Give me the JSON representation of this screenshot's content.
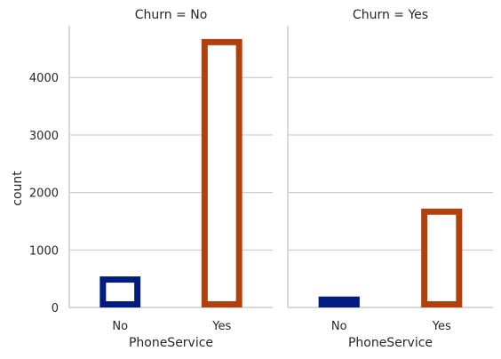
{
  "chart_data": {
    "type": "bar",
    "facets": [
      {
        "title": "Churn = No",
        "categories": [
          "No",
          "Yes"
        ],
        "values": [
          540,
          4670
        ]
      },
      {
        "title": "Churn = Yes",
        "categories": [
          "No",
          "Yes"
        ],
        "values": [
          190,
          1720
        ]
      }
    ],
    "xlabel": "PhoneService",
    "ylabel": "count",
    "ylim": [
      0,
      4900
    ],
    "yticks": [
      "0",
      "1000",
      "2000",
      "3000",
      "4000"
    ],
    "grid": "horizontal",
    "bar_style": "outlined",
    "colors": {
      "No": "#001c7f",
      "Yes": "#b1400d"
    },
    "gridline_color": "#cccccc",
    "axis_color": "#cccccc"
  }
}
